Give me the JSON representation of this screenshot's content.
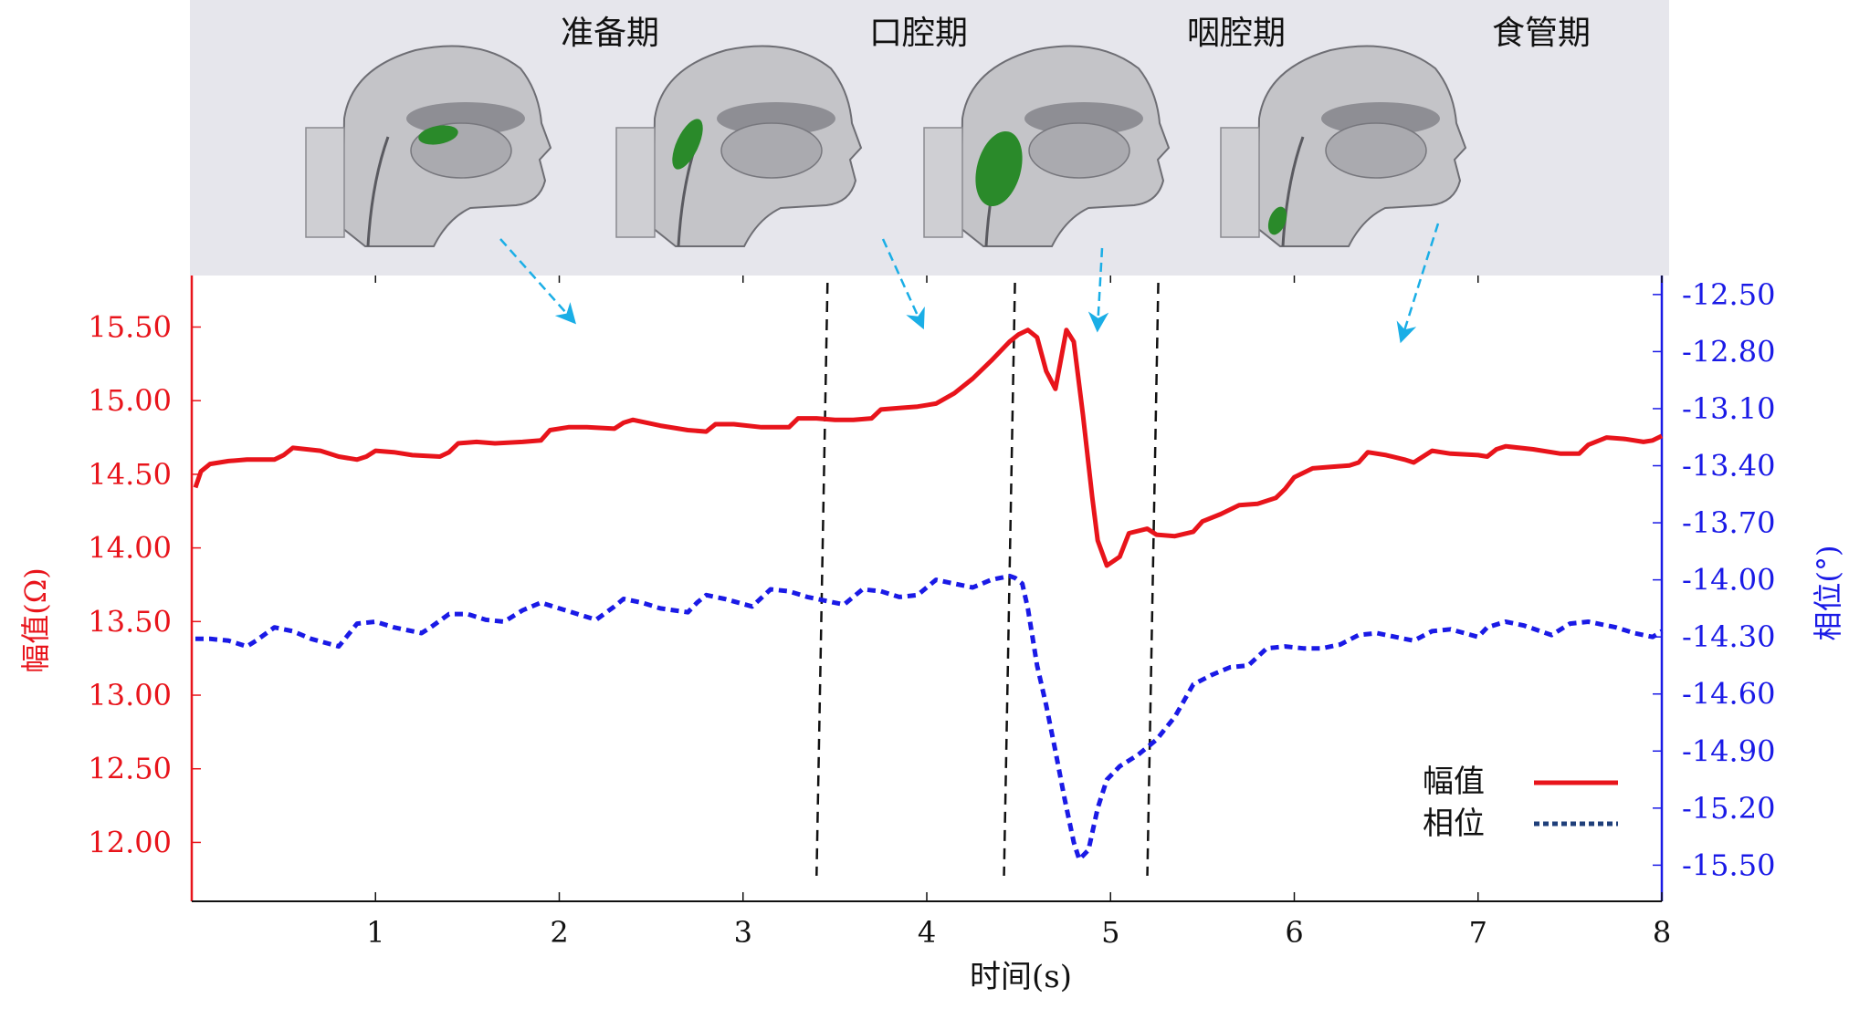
{
  "phases": [
    {
      "label": "准备期",
      "bolus": "mouth"
    },
    {
      "label": "口腔期",
      "bolus": "oropharynx"
    },
    {
      "label": "咽腔期",
      "bolus": "pharynx"
    },
    {
      "label": "食管期",
      "bolus": "esophagus"
    }
  ],
  "colors": {
    "amplitude": "#e8141b",
    "phase": "#1a1ae6",
    "arrow": "#1aaee6",
    "panel": "#e6e6ec",
    "bolus": "#2a8a2a",
    "legend_phase": "#1f3f7a",
    "boundary": "#111111"
  },
  "chart_data": {
    "type": "line",
    "xlabel": "时间(s)",
    "ylabel_left": "幅值(Ω)",
    "ylabel_right": "相位(°)",
    "xlim": [
      0,
      8
    ],
    "ylim_left": [
      11.6,
      15.85
    ],
    "ylim_right": [
      -15.69,
      -12.4
    ],
    "x_ticks": [
      1,
      2,
      3,
      4,
      5,
      6,
      7,
      8
    ],
    "left_ticks": [
      12.0,
      12.5,
      13.0,
      13.5,
      14.0,
      14.5,
      15.0,
      15.5
    ],
    "right_ticks": [
      -12.5,
      -12.8,
      -13.1,
      -13.4,
      -13.7,
      -14.0,
      -14.3,
      -14.6,
      -14.9,
      -15.2,
      -15.5
    ],
    "phase_boundaries": [
      3.43,
      4.45,
      5.23
    ],
    "legend": {
      "position": "bottom-right",
      "entries": [
        "幅值",
        "相位"
      ]
    },
    "series": [
      {
        "name": "幅值",
        "axis": "left",
        "style": "solid",
        "points": [
          [
            0.02,
            14.41
          ],
          [
            0.05,
            14.52
          ],
          [
            0.1,
            14.57
          ],
          [
            0.2,
            14.59
          ],
          [
            0.3,
            14.6
          ],
          [
            0.45,
            14.6
          ],
          [
            0.5,
            14.63
          ],
          [
            0.55,
            14.68
          ],
          [
            0.7,
            14.66
          ],
          [
            0.8,
            14.62
          ],
          [
            0.9,
            14.6
          ],
          [
            0.95,
            14.62
          ],
          [
            1.0,
            14.66
          ],
          [
            1.1,
            14.65
          ],
          [
            1.2,
            14.63
          ],
          [
            1.35,
            14.62
          ],
          [
            1.4,
            14.65
          ],
          [
            1.45,
            14.71
          ],
          [
            1.55,
            14.72
          ],
          [
            1.65,
            14.71
          ],
          [
            1.8,
            14.72
          ],
          [
            1.9,
            14.73
          ],
          [
            1.95,
            14.8
          ],
          [
            2.05,
            14.82
          ],
          [
            2.15,
            14.82
          ],
          [
            2.3,
            14.81
          ],
          [
            2.35,
            14.85
          ],
          [
            2.4,
            14.87
          ],
          [
            2.55,
            14.83
          ],
          [
            2.7,
            14.8
          ],
          [
            2.8,
            14.79
          ],
          [
            2.85,
            14.84
          ],
          [
            2.95,
            14.84
          ],
          [
            3.1,
            14.82
          ],
          [
            3.25,
            14.82
          ],
          [
            3.3,
            14.88
          ],
          [
            3.4,
            14.88
          ],
          [
            3.5,
            14.87
          ],
          [
            3.6,
            14.87
          ],
          [
            3.7,
            14.88
          ],
          [
            3.75,
            14.94
          ],
          [
            3.85,
            14.95
          ],
          [
            3.95,
            14.96
          ],
          [
            4.05,
            14.98
          ],
          [
            4.15,
            15.05
          ],
          [
            4.25,
            15.15
          ],
          [
            4.35,
            15.27
          ],
          [
            4.45,
            15.4
          ],
          [
            4.5,
            15.45
          ],
          [
            4.55,
            15.48
          ],
          [
            4.6,
            15.43
          ],
          [
            4.65,
            15.2
          ],
          [
            4.7,
            15.08
          ],
          [
            4.73,
            15.28
          ],
          [
            4.76,
            15.48
          ],
          [
            4.8,
            15.4
          ],
          [
            4.85,
            14.9
          ],
          [
            4.9,
            14.35
          ],
          [
            4.93,
            14.05
          ],
          [
            4.98,
            13.88
          ],
          [
            5.05,
            13.94
          ],
          [
            5.1,
            14.1
          ],
          [
            5.2,
            14.13
          ],
          [
            5.25,
            14.09
          ],
          [
            5.35,
            14.08
          ],
          [
            5.45,
            14.11
          ],
          [
            5.5,
            14.18
          ],
          [
            5.6,
            14.23
          ],
          [
            5.7,
            14.29
          ],
          [
            5.8,
            14.3
          ],
          [
            5.9,
            14.34
          ],
          [
            5.95,
            14.4
          ],
          [
            6.0,
            14.48
          ],
          [
            6.1,
            14.54
          ],
          [
            6.2,
            14.55
          ],
          [
            6.3,
            14.56
          ],
          [
            6.35,
            14.58
          ],
          [
            6.4,
            14.65
          ],
          [
            6.5,
            14.63
          ],
          [
            6.6,
            14.6
          ],
          [
            6.65,
            14.58
          ],
          [
            6.7,
            14.62
          ],
          [
            6.75,
            14.66
          ],
          [
            6.85,
            14.64
          ],
          [
            7.0,
            14.63
          ],
          [
            7.05,
            14.62
          ],
          [
            7.1,
            14.67
          ],
          [
            7.15,
            14.69
          ],
          [
            7.3,
            14.67
          ],
          [
            7.45,
            14.64
          ],
          [
            7.55,
            14.64
          ],
          [
            7.6,
            14.7
          ],
          [
            7.7,
            14.75
          ],
          [
            7.8,
            14.74
          ],
          [
            7.9,
            14.72
          ],
          [
            7.95,
            14.73
          ],
          [
            8.0,
            14.76
          ]
        ]
      },
      {
        "name": "相位",
        "axis": "right",
        "style": "dashed",
        "points": [
          [
            0.02,
            -14.31
          ],
          [
            0.1,
            -14.31
          ],
          [
            0.2,
            -14.32
          ],
          [
            0.3,
            -14.35
          ],
          [
            0.35,
            -14.32
          ],
          [
            0.45,
            -14.25
          ],
          [
            0.55,
            -14.27
          ],
          [
            0.65,
            -14.31
          ],
          [
            0.8,
            -14.35
          ],
          [
            0.85,
            -14.29
          ],
          [
            0.9,
            -14.23
          ],
          [
            1.0,
            -14.22
          ],
          [
            1.1,
            -14.25
          ],
          [
            1.25,
            -14.28
          ],
          [
            1.3,
            -14.25
          ],
          [
            1.4,
            -14.18
          ],
          [
            1.5,
            -14.18
          ],
          [
            1.6,
            -14.21
          ],
          [
            1.7,
            -14.22
          ],
          [
            1.8,
            -14.16
          ],
          [
            1.9,
            -14.12
          ],
          [
            2.0,
            -14.15
          ],
          [
            2.1,
            -14.18
          ],
          [
            2.2,
            -14.21
          ],
          [
            2.3,
            -14.14
          ],
          [
            2.35,
            -14.1
          ],
          [
            2.45,
            -14.12
          ],
          [
            2.55,
            -14.15
          ],
          [
            2.7,
            -14.17
          ],
          [
            2.75,
            -14.12
          ],
          [
            2.8,
            -14.08
          ],
          [
            2.9,
            -14.1
          ],
          [
            3.05,
            -14.14
          ],
          [
            3.15,
            -14.05
          ],
          [
            3.25,
            -14.06
          ],
          [
            3.35,
            -14.09
          ],
          [
            3.45,
            -14.11
          ],
          [
            3.55,
            -14.13
          ],
          [
            3.65,
            -14.05
          ],
          [
            3.75,
            -14.06
          ],
          [
            3.85,
            -14.09
          ],
          [
            3.95,
            -14.08
          ],
          [
            4.05,
            -14.0
          ],
          [
            4.15,
            -14.02
          ],
          [
            4.25,
            -14.04
          ],
          [
            4.35,
            -14.0
          ],
          [
            4.45,
            -13.98
          ],
          [
            4.48,
            -13.99
          ],
          [
            4.52,
            -14.02
          ],
          [
            4.55,
            -14.15
          ],
          [
            4.6,
            -14.45
          ],
          [
            4.65,
            -14.66
          ],
          [
            4.7,
            -14.9
          ],
          [
            4.75,
            -15.15
          ],
          [
            4.8,
            -15.38
          ],
          [
            4.83,
            -15.47
          ],
          [
            4.88,
            -15.42
          ],
          [
            4.93,
            -15.2
          ],
          [
            4.98,
            -15.05
          ],
          [
            5.05,
            -14.98
          ],
          [
            5.15,
            -14.92
          ],
          [
            5.25,
            -14.84
          ],
          [
            5.35,
            -14.72
          ],
          [
            5.45,
            -14.55
          ],
          [
            5.55,
            -14.5
          ],
          [
            5.65,
            -14.46
          ],
          [
            5.75,
            -14.45
          ],
          [
            5.85,
            -14.36
          ],
          [
            5.95,
            -14.35
          ],
          [
            6.05,
            -14.36
          ],
          [
            6.15,
            -14.36
          ],
          [
            6.25,
            -14.34
          ],
          [
            6.35,
            -14.29
          ],
          [
            6.45,
            -14.28
          ],
          [
            6.55,
            -14.3
          ],
          [
            6.65,
            -14.32
          ],
          [
            6.75,
            -14.27
          ],
          [
            6.85,
            -14.26
          ],
          [
            7.0,
            -14.3
          ],
          [
            7.05,
            -14.25
          ],
          [
            7.15,
            -14.22
          ],
          [
            7.25,
            -14.24
          ],
          [
            7.4,
            -14.29
          ],
          [
            7.5,
            -14.23
          ],
          [
            7.6,
            -14.22
          ],
          [
            7.75,
            -14.25
          ],
          [
            7.85,
            -14.28
          ],
          [
            7.95,
            -14.3
          ],
          [
            8.0,
            -14.27
          ]
        ]
      }
    ]
  }
}
